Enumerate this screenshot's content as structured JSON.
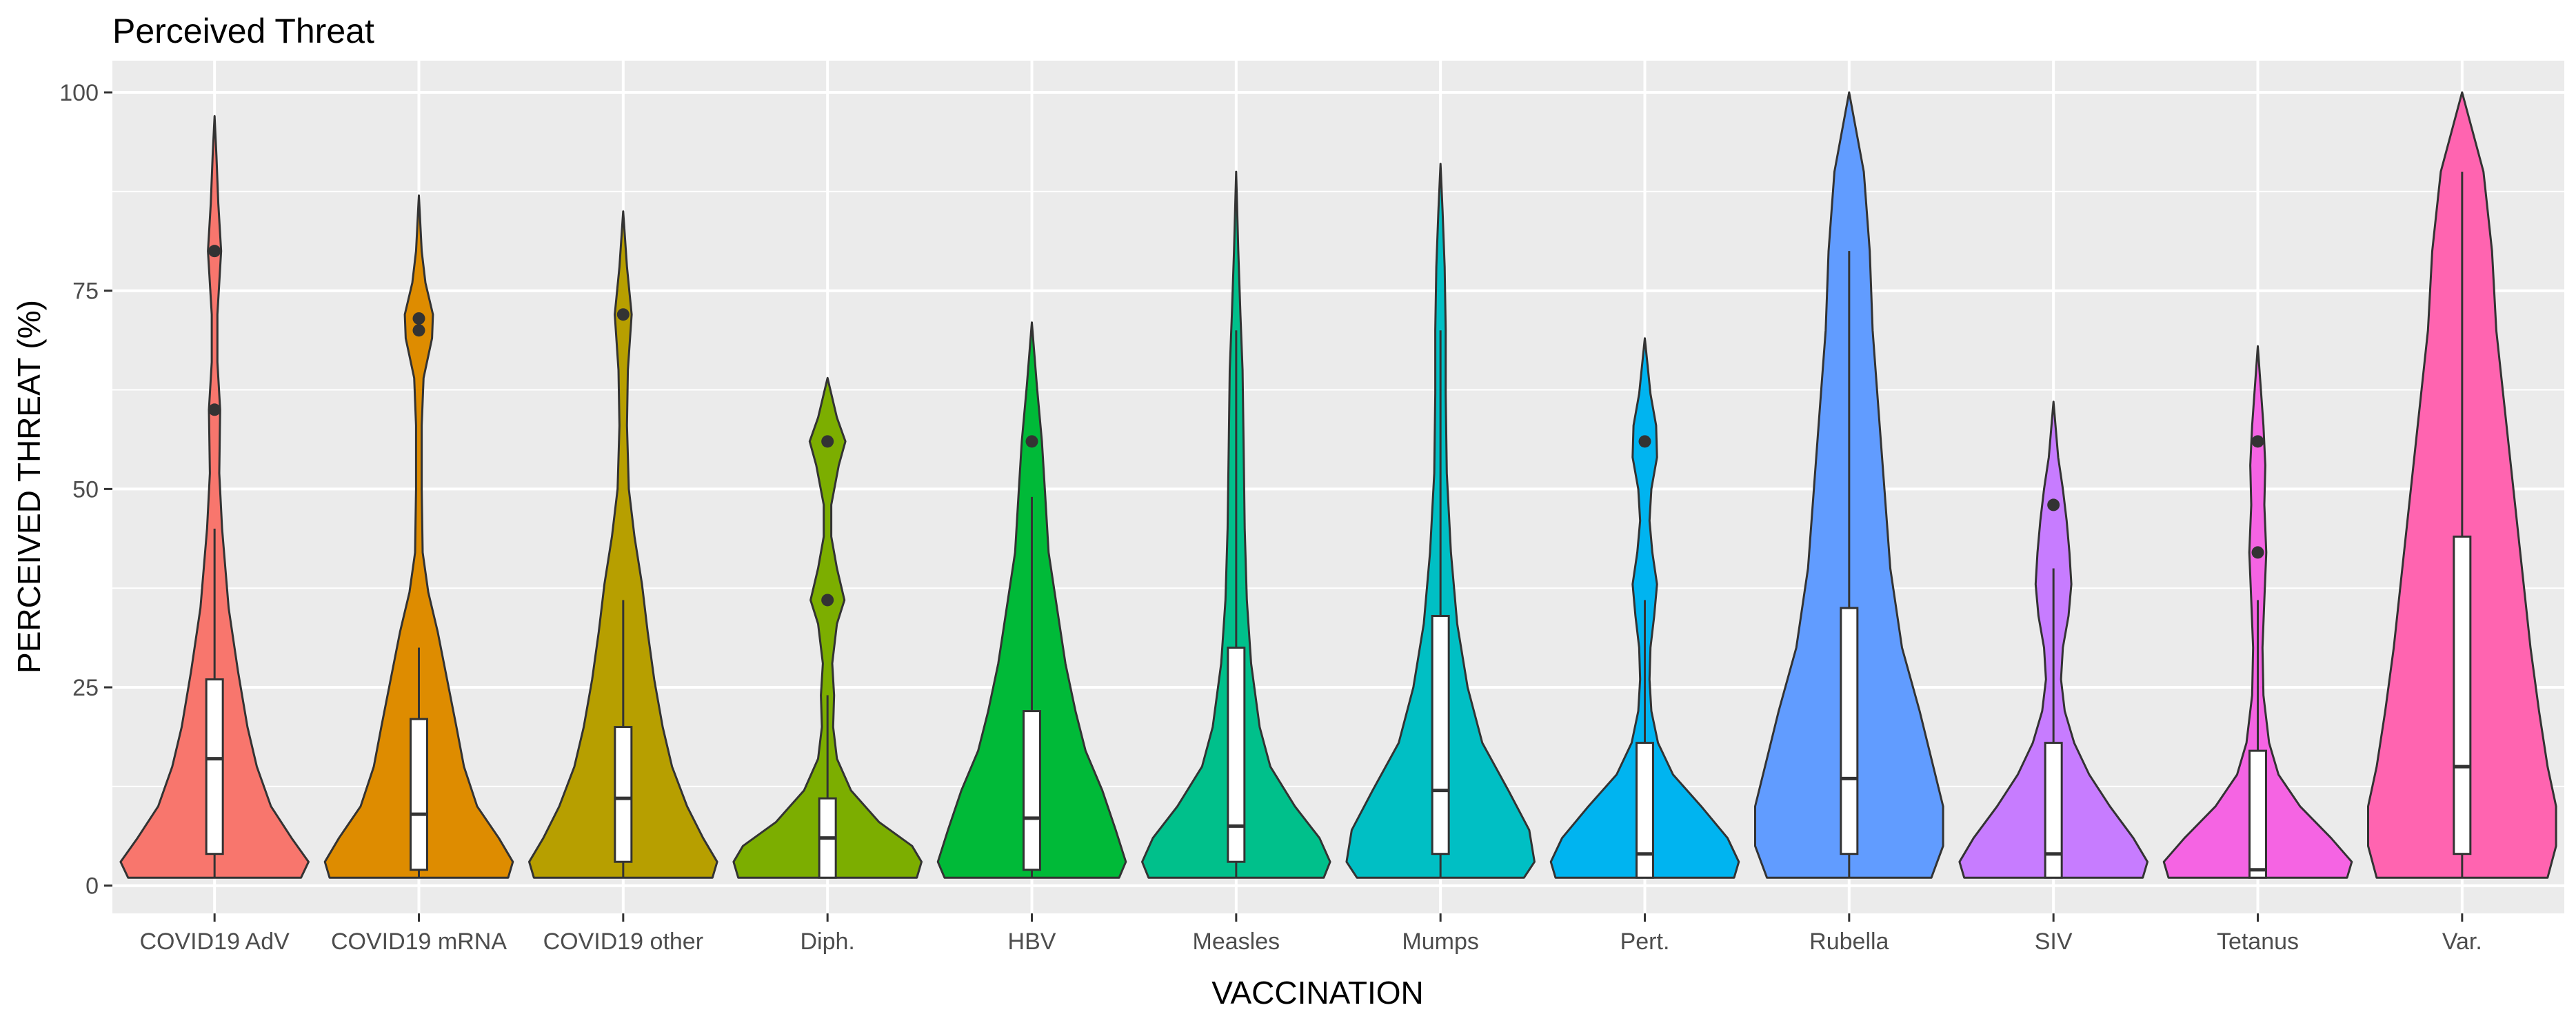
{
  "chart_data": {
    "type": "violin",
    "title": "Perceived Threat",
    "xlabel": "VACCINATION",
    "ylabel": "PERCEIVED THREAT (%)",
    "ylim": [
      -3.5,
      104
    ],
    "yticks": [
      0,
      25,
      50,
      75,
      100
    ],
    "ytick_labels": [
      "0",
      "25",
      "50",
      "75",
      "100"
    ],
    "grid": true,
    "legend": "none",
    "panel_background": "#ebebeb",
    "grid_color": "#ffffff",
    "categories": [
      "COVID19 AdV",
      "COVID19 mRNA",
      "COVID19 other",
      "Diph.",
      "HBV",
      "Measles",
      "Mumps",
      "Pert.",
      "Rubella",
      "SIV",
      "Tetanus",
      "Var."
    ],
    "series": [
      {
        "fill": "#F8766D",
        "min": 1,
        "max": 97,
        "q1": 4,
        "median": 16,
        "q3": 26,
        "whisker_low": 1,
        "whisker_high": 45,
        "outliers": [
          60,
          80
        ],
        "density": [
          [
            1,
            0.92
          ],
          [
            3,
            1
          ],
          [
            6,
            0.82
          ],
          [
            10,
            0.6
          ],
          [
            15,
            0.45
          ],
          [
            20,
            0.35
          ],
          [
            27,
            0.25
          ],
          [
            35,
            0.15
          ],
          [
            45,
            0.08
          ],
          [
            52,
            0.05
          ],
          [
            60,
            0.06
          ],
          [
            66,
            0.03
          ],
          [
            72,
            0.03
          ],
          [
            80,
            0.07
          ],
          [
            86,
            0.04
          ],
          [
            92,
            0.02
          ],
          [
            97,
            0
          ]
        ]
      },
      {
        "fill": "#DE8C00",
        "min": 1,
        "max": 87,
        "q1": 2,
        "median": 9,
        "q3": 21,
        "whisker_low": 1,
        "whisker_high": 30,
        "outliers": [
          70,
          71.5
        ],
        "density": [
          [
            1,
            0.95
          ],
          [
            3,
            1
          ],
          [
            6,
            0.85
          ],
          [
            10,
            0.62
          ],
          [
            15,
            0.48
          ],
          [
            20,
            0.4
          ],
          [
            26,
            0.3
          ],
          [
            32,
            0.2
          ],
          [
            37,
            0.1
          ],
          [
            42,
            0.04
          ],
          [
            50,
            0.03
          ],
          [
            58,
            0.03
          ],
          [
            64,
            0.05
          ],
          [
            69,
            0.14
          ],
          [
            72,
            0.15
          ],
          [
            76,
            0.07
          ],
          [
            80,
            0.03
          ],
          [
            87,
            0
          ]
        ]
      },
      {
        "fill": "#B79F00",
        "min": 1,
        "max": 85,
        "q1": 3,
        "median": 11,
        "q3": 20,
        "whisker_low": 1,
        "whisker_high": 36,
        "outliers": [
          72
        ],
        "density": [
          [
            1,
            0.95
          ],
          [
            3,
            1
          ],
          [
            6,
            0.85
          ],
          [
            10,
            0.68
          ],
          [
            15,
            0.52
          ],
          [
            20,
            0.42
          ],
          [
            26,
            0.33
          ],
          [
            32,
            0.26
          ],
          [
            38,
            0.2
          ],
          [
            44,
            0.12
          ],
          [
            50,
            0.06
          ],
          [
            58,
            0.04
          ],
          [
            65,
            0.05
          ],
          [
            72,
            0.09
          ],
          [
            78,
            0.04
          ],
          [
            85,
            0
          ]
        ]
      },
      {
        "fill": "#7CAE00",
        "min": 1,
        "max": 64,
        "q1": 1,
        "median": 6,
        "q3": 11,
        "whisker_low": 1,
        "whisker_high": 24,
        "outliers": [
          36,
          56
        ],
        "density": [
          [
            1,
            0.95
          ],
          [
            3,
            1
          ],
          [
            5,
            0.9
          ],
          [
            8,
            0.55
          ],
          [
            12,
            0.25
          ],
          [
            16,
            0.1
          ],
          [
            20,
            0.06
          ],
          [
            24,
            0.07
          ],
          [
            28,
            0.05
          ],
          [
            33,
            0.1
          ],
          [
            36,
            0.18
          ],
          [
            40,
            0.1
          ],
          [
            44,
            0.04
          ],
          [
            48,
            0.04
          ],
          [
            53,
            0.12
          ],
          [
            56,
            0.19
          ],
          [
            59,
            0.1
          ],
          [
            64,
            0
          ]
        ]
      },
      {
        "fill": "#00BA38",
        "min": 1,
        "max": 71,
        "q1": 2,
        "median": 8.5,
        "q3": 22,
        "whisker_low": 1,
        "whisker_high": 49,
        "outliers": [
          56
        ],
        "density": [
          [
            1,
            0.52
          ],
          [
            3,
            0.56
          ],
          [
            7,
            0.5
          ],
          [
            12,
            0.42
          ],
          [
            17,
            0.32
          ],
          [
            22,
            0.26
          ],
          [
            28,
            0.2
          ],
          [
            35,
            0.15
          ],
          [
            42,
            0.1
          ],
          [
            49,
            0.08
          ],
          [
            56,
            0.06
          ],
          [
            63,
            0.03
          ],
          [
            71,
            0
          ]
        ]
      },
      {
        "fill": "#00C08B",
        "min": 1,
        "max": 90,
        "q1": 3,
        "median": 7.5,
        "q3": 30,
        "whisker_low": 1,
        "whisker_high": 70,
        "outliers": [],
        "density": [
          [
            1,
            0.82
          ],
          [
            3,
            0.88
          ],
          [
            6,
            0.78
          ],
          [
            10,
            0.55
          ],
          [
            15,
            0.32
          ],
          [
            20,
            0.22
          ],
          [
            28,
            0.14
          ],
          [
            36,
            0.1
          ],
          [
            45,
            0.08
          ],
          [
            55,
            0.07
          ],
          [
            65,
            0.06
          ],
          [
            72,
            0.04
          ],
          [
            80,
            0.02
          ],
          [
            90,
            0
          ]
        ]
      },
      {
        "fill": "#00BFC4",
        "min": 1,
        "max": 91,
        "q1": 4,
        "median": 12,
        "q3": 34,
        "whisker_low": 1,
        "whisker_high": 70,
        "outliers": [],
        "density": [
          [
            1,
            0.8
          ],
          [
            3,
            0.9
          ],
          [
            7,
            0.85
          ],
          [
            12,
            0.65
          ],
          [
            18,
            0.4
          ],
          [
            25,
            0.26
          ],
          [
            33,
            0.16
          ],
          [
            42,
            0.1
          ],
          [
            52,
            0.06
          ],
          [
            62,
            0.05
          ],
          [
            70,
            0.05
          ],
          [
            78,
            0.04
          ],
          [
            85,
            0.02
          ],
          [
            91,
            0
          ]
        ]
      },
      {
        "fill": "#00B4F0",
        "min": 1,
        "max": 69,
        "q1": 1,
        "median": 4,
        "q3": 18,
        "whisker_low": 1,
        "whisker_high": 36,
        "outliers": [
          56
        ],
        "density": [
          [
            1,
            0.95
          ],
          [
            3,
            1
          ],
          [
            6,
            0.88
          ],
          [
            10,
            0.6
          ],
          [
            14,
            0.3
          ],
          [
            18,
            0.14
          ],
          [
            22,
            0.07
          ],
          [
            26,
            0.05
          ],
          [
            30,
            0.06
          ],
          [
            34,
            0.1
          ],
          [
            38,
            0.13
          ],
          [
            42,
            0.08
          ],
          [
            46,
            0.05
          ],
          [
            50,
            0.07
          ],
          [
            54,
            0.13
          ],
          [
            58,
            0.12
          ],
          [
            62,
            0.06
          ],
          [
            69,
            0
          ]
        ]
      },
      {
        "fill": "#619CFF",
        "min": 1,
        "max": 100,
        "q1": 4,
        "median": 13.5,
        "q3": 35,
        "whisker_low": 1,
        "whisker_high": 80,
        "outliers": [],
        "density": [
          [
            1,
            0.14
          ],
          [
            5,
            0.16
          ],
          [
            10,
            0.16
          ],
          [
            16,
            0.14
          ],
          [
            22,
            0.12
          ],
          [
            30,
            0.09
          ],
          [
            40,
            0.07
          ],
          [
            50,
            0.06
          ],
          [
            60,
            0.05
          ],
          [
            70,
            0.04
          ],
          [
            80,
            0.035
          ],
          [
            90,
            0.025
          ],
          [
            100,
            0
          ]
        ]
      },
      {
        "fill": "#C77CFF",
        "min": 1,
        "max": 61,
        "q1": 1,
        "median": 4,
        "q3": 18,
        "whisker_low": 1,
        "whisker_high": 40,
        "outliers": [
          48
        ],
        "density": [
          [
            1,
            0.95
          ],
          [
            3,
            1
          ],
          [
            6,
            0.85
          ],
          [
            10,
            0.6
          ],
          [
            14,
            0.38
          ],
          [
            18,
            0.22
          ],
          [
            22,
            0.12
          ],
          [
            26,
            0.08
          ],
          [
            30,
            0.1
          ],
          [
            34,
            0.16
          ],
          [
            38,
            0.19
          ],
          [
            42,
            0.17
          ],
          [
            46,
            0.14
          ],
          [
            50,
            0.1
          ],
          [
            54,
            0.05
          ],
          [
            61,
            0
          ]
        ]
      },
      {
        "fill": "#F564E3",
        "min": 1,
        "max": 68,
        "q1": 1,
        "median": 2,
        "q3": 17,
        "whisker_low": 1,
        "whisker_high": 36,
        "outliers": [
          42,
          56
        ],
        "density": [
          [
            1,
            0.95
          ],
          [
            3,
            1
          ],
          [
            6,
            0.78
          ],
          [
            10,
            0.45
          ],
          [
            14,
            0.22
          ],
          [
            18,
            0.12
          ],
          [
            24,
            0.06
          ],
          [
            30,
            0.05
          ],
          [
            36,
            0.07
          ],
          [
            42,
            0.09
          ],
          [
            48,
            0.07
          ],
          [
            53,
            0.08
          ],
          [
            58,
            0.06
          ],
          [
            63,
            0.03
          ],
          [
            68,
            0
          ]
        ]
      },
      {
        "fill": "#FF64B0",
        "min": 1,
        "max": 100,
        "q1": 4,
        "median": 15,
        "q3": 44,
        "whisker_low": 1,
        "whisker_high": 90,
        "outliers": [],
        "density": [
          [
            1,
            0.1
          ],
          [
            5,
            0.11
          ],
          [
            10,
            0.11
          ],
          [
            15,
            0.1
          ],
          [
            22,
            0.09
          ],
          [
            30,
            0.08
          ],
          [
            40,
            0.07
          ],
          [
            50,
            0.06
          ],
          [
            60,
            0.05
          ],
          [
            70,
            0.04
          ],
          [
            80,
            0.035
          ],
          [
            90,
            0.025
          ],
          [
            100,
            0
          ]
        ]
      }
    ]
  }
}
